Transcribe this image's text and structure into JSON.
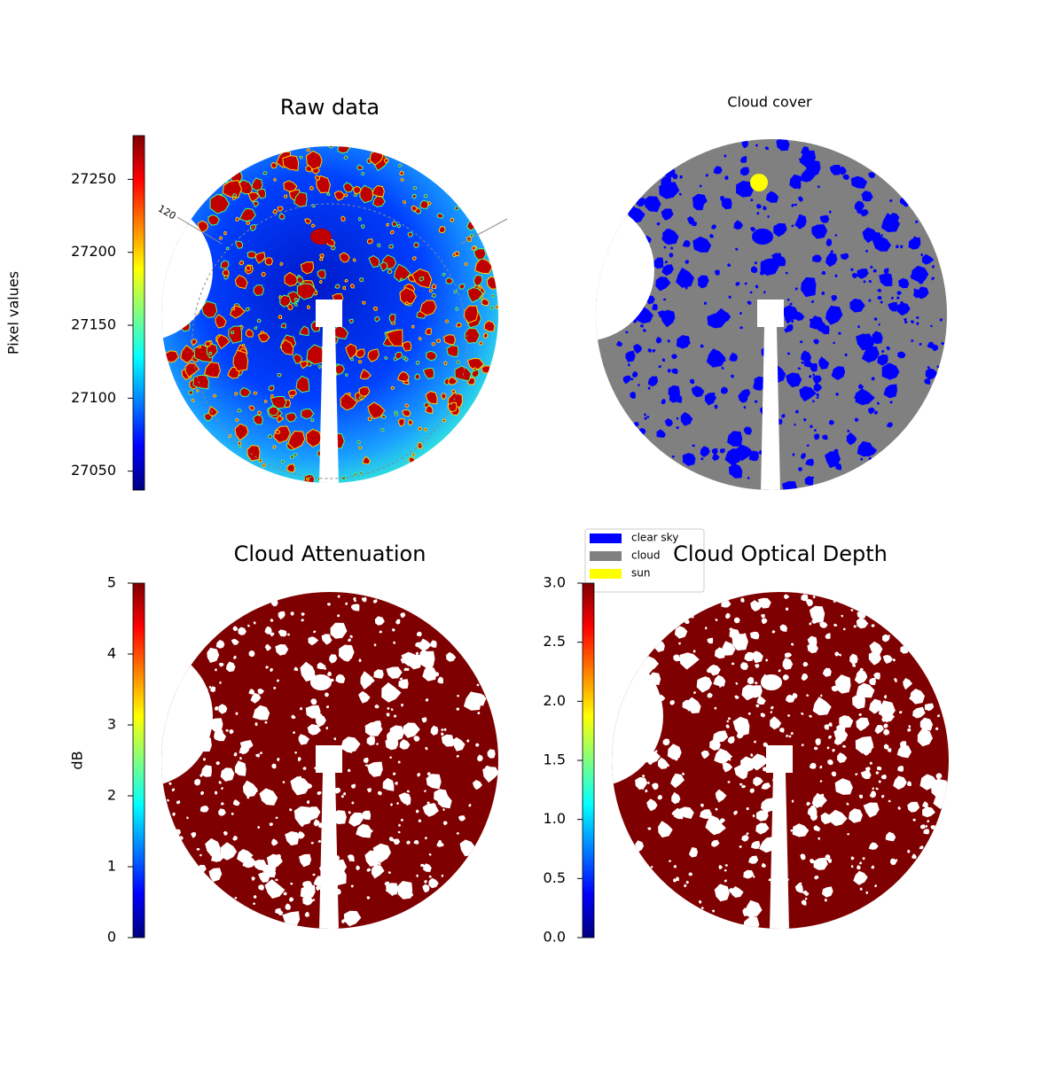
{
  "chart_data": [
    {
      "type": "image",
      "title": "Raw data",
      "annotation": "120",
      "colorbar": {
        "label": "Pixel values",
        "colormap": "jet",
        "lim": [
          27037,
          27280
        ],
        "ticks": [
          27050,
          27100,
          27150,
          27200,
          27250
        ]
      }
    },
    {
      "type": "image",
      "title": "Cloud cover",
      "color": "#808080",
      "legend": [
        {
          "name": "clear sky",
          "color": "#0000ff"
        },
        {
          "name": "cloud",
          "color": "#808080"
        },
        {
          "name": "sun",
          "color": "#ffff00"
        }
      ]
    },
    {
      "type": "image",
      "title": "Cloud Attenuation",
      "color": "#7f0000",
      "colorbar": {
        "label": "dB",
        "colormap": "jet",
        "lim": [
          0,
          5
        ],
        "ticks": [
          0,
          1,
          2,
          3,
          4,
          5
        ]
      }
    },
    {
      "type": "image",
      "title": "Cloud Optical Depth",
      "color": "#7f0000",
      "colorbar": {
        "colormap": "jet",
        "lim": [
          0,
          3
        ],
        "ticks": [
          {
            "value": 0,
            "label": "0.0"
          },
          {
            "value": 0.5,
            "label": "0.5"
          },
          {
            "value": 1,
            "label": "1.0"
          },
          {
            "value": 1.5,
            "label": "1.5"
          },
          {
            "value": 2,
            "label": "2.0"
          },
          {
            "value": 2.5,
            "label": "2.5"
          },
          {
            "value": 3,
            "label": "3.0"
          }
        ]
      }
    }
  ]
}
